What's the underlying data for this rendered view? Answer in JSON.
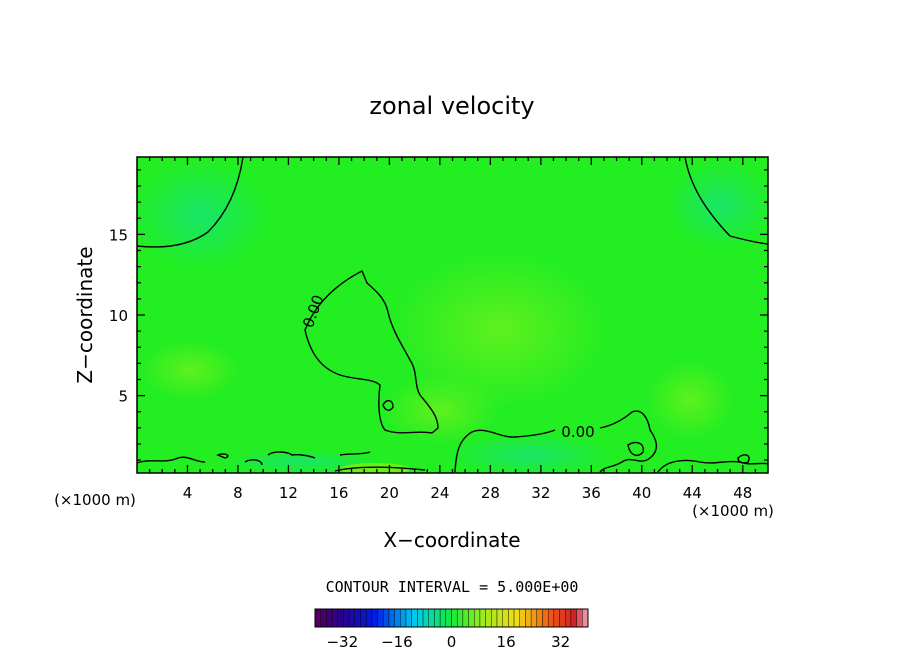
{
  "chart_data": {
    "type": "contour",
    "title": "zonal velocity",
    "xlabel": "X−coordinate",
    "ylabel": "Z−coordinate",
    "x_unit_left": "(×1000 m)",
    "x_unit_right": "(×1000 m)",
    "xlim": [
      0,
      50
    ],
    "ylim": [
      0.2,
      19.8
    ],
    "x_ticks": [
      4,
      8,
      12,
      16,
      20,
      24,
      28,
      32,
      36,
      40,
      44,
      48
    ],
    "x_tick_labels": [
      "4",
      "8",
      "12",
      "16",
      "20",
      "24",
      "28",
      "32",
      "36",
      "40",
      "44",
      "48"
    ],
    "y_ticks": [
      5,
      10,
      15
    ],
    "y_tick_labels": [
      "5",
      "10",
      "15"
    ],
    "contour_labels": [
      {
        "text": "0.00",
        "x": 13.5,
        "z": 10.0,
        "angle": -70
      },
      {
        "text": "0.00",
        "x": 34.0,
        "z": 2.6,
        "angle": 0
      }
    ],
    "contour_interval_text": "CONTOUR INTERVAL = 5.000E+00",
    "colorbar": {
      "range": [
        -40,
        40
      ],
      "ticks": [
        -32,
        -16,
        0,
        16,
        32
      ],
      "tick_labels": [
        "−32",
        "−16",
        "0",
        "16",
        "32"
      ],
      "colormap": "rainbow"
    },
    "field_color": "#22ee22"
  }
}
